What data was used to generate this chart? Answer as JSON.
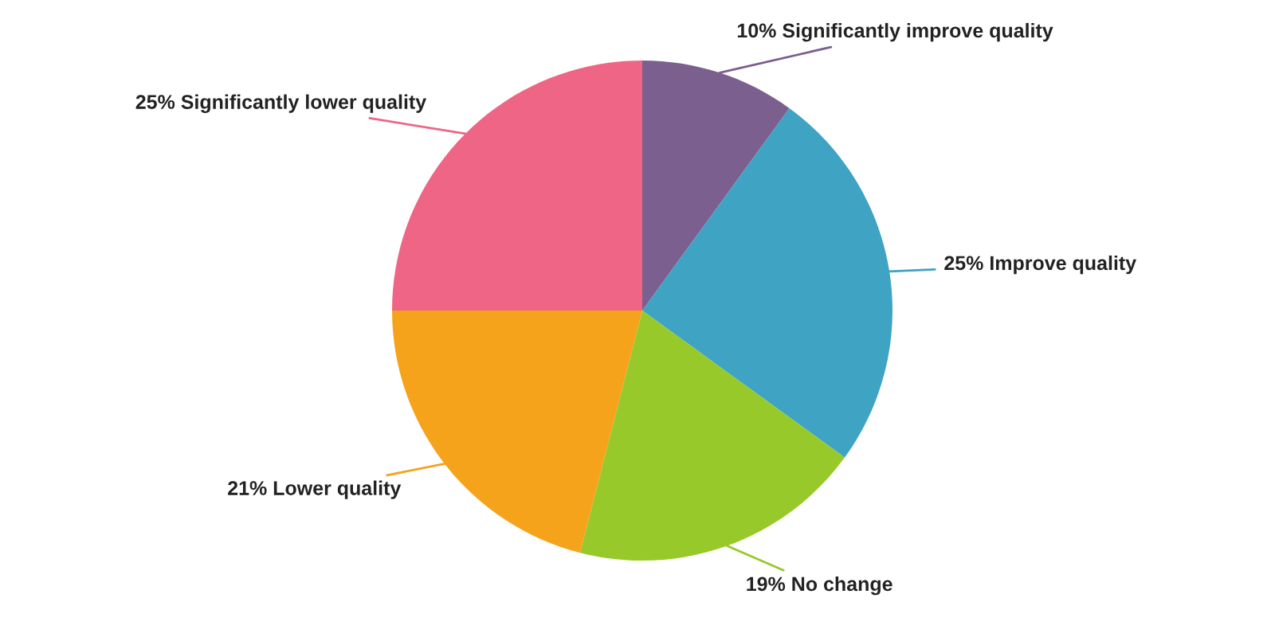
{
  "chart_data": {
    "type": "pie",
    "categories": [
      "Significantly improve quality",
      "Improve quality",
      "No change",
      "Lower quality",
      "Significantly lower quality"
    ],
    "values": [
      10,
      25,
      19,
      21,
      25
    ],
    "colors": [
      "#7b5f8f",
      "#3fa3c4",
      "#97c92b",
      "#f5a31b",
      "#ef6585"
    ],
    "value_labels": [
      "10%",
      "25%",
      "19%",
      "21%",
      "25%"
    ],
    "legend": false
  }
}
